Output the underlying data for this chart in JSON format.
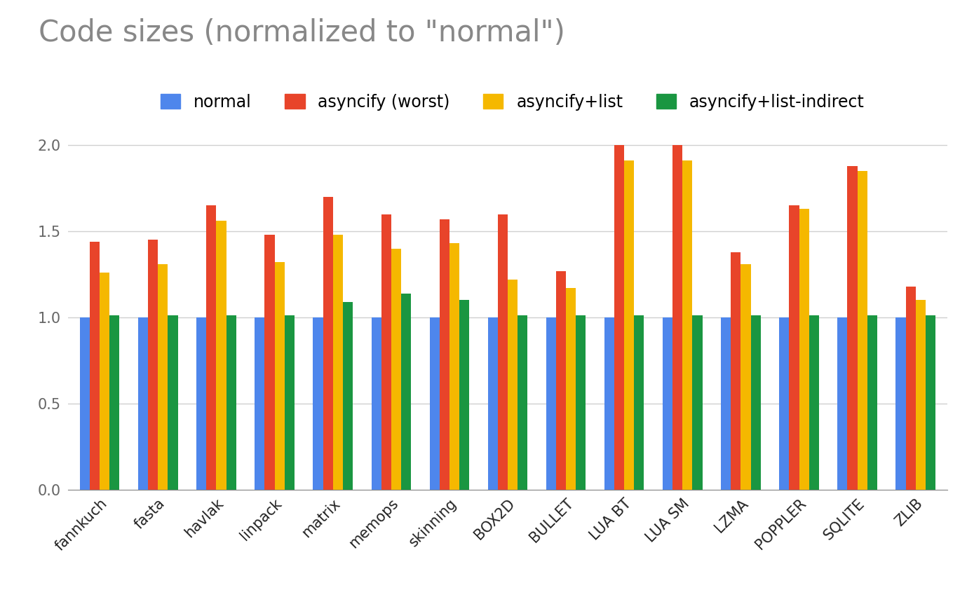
{
  "title": "Code sizes (normalized to \"normal\")",
  "categories": [
    "fannkuch",
    "fasta",
    "havlak",
    "linpack",
    "matrix",
    "memops",
    "skinning",
    "BOX2D",
    "BULLET",
    "LUA BT",
    "LUA SM",
    "LZMA",
    "POPPLER",
    "SQLITE",
    "ZLIB"
  ],
  "series": {
    "normal": [
      1.0,
      1.0,
      1.0,
      1.0,
      1.0,
      1.0,
      1.0,
      1.0,
      1.0,
      1.0,
      1.0,
      1.0,
      1.0,
      1.0,
      1.0
    ],
    "asyncify (worst)": [
      1.44,
      1.45,
      1.65,
      1.48,
      1.7,
      1.6,
      1.57,
      1.6,
      1.27,
      2.0,
      2.0,
      1.38,
      1.65,
      1.88,
      1.18
    ],
    "asyncify+list": [
      1.26,
      1.31,
      1.56,
      1.32,
      1.48,
      1.4,
      1.43,
      1.22,
      1.17,
      1.91,
      1.91,
      1.31,
      1.63,
      1.85,
      1.1
    ],
    "asyncify+list-indirect": [
      1.01,
      1.01,
      1.01,
      1.01,
      1.09,
      1.14,
      1.1,
      1.01,
      1.01,
      1.01,
      1.01,
      1.01,
      1.01,
      1.01,
      1.01
    ]
  },
  "colors": {
    "normal": "#4e86ec",
    "asyncify (worst)": "#e8442a",
    "asyncify+list": "#f5b800",
    "asyncify+list-indirect": "#1a9641"
  },
  "legend_labels": [
    "normal",
    "asyncify (worst)",
    "asyncify+list",
    "asyncify+list-indirect"
  ],
  "series_keys": [
    "normal",
    "asyncify (worst)",
    "asyncify+list",
    "asyncify+list-indirect"
  ],
  "ylim": [
    0,
    2.15
  ],
  "yticks": [
    0,
    0.5,
    1.0,
    1.5,
    2.0
  ],
  "background_color": "#ffffff",
  "grid_color": "#d0d0d0",
  "title_fontsize": 30,
  "tick_fontsize": 15,
  "legend_fontsize": 17,
  "bar_width": 0.17
}
